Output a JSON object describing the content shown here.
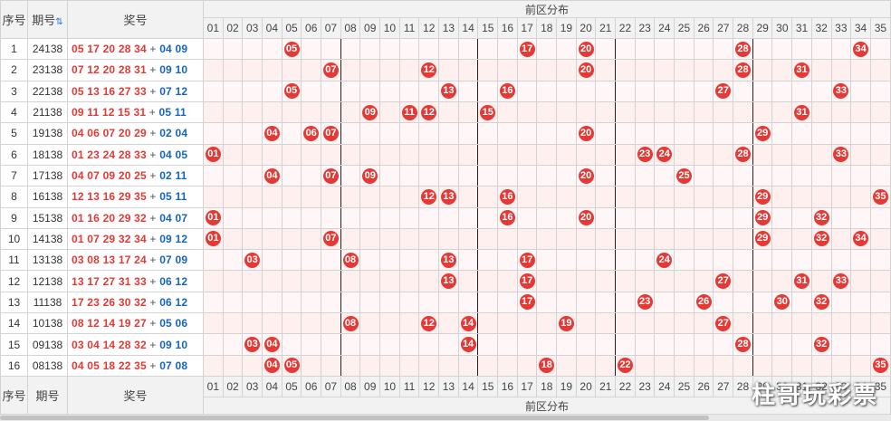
{
  "header": {
    "idx_label": "序号",
    "period_label": "期号",
    "period_sort_icon": "⇅",
    "award_label": "奖号",
    "region_label": "前区分布"
  },
  "footer": {
    "idx_label": "序号",
    "period_label": "期号",
    "award_label": "奖号",
    "region_label": "前区分布"
  },
  "numbers": [
    "01",
    "02",
    "03",
    "04",
    "05",
    "06",
    "07",
    "08",
    "09",
    "10",
    "11",
    "12",
    "13",
    "14",
    "15",
    "16",
    "17",
    "18",
    "19",
    "20",
    "21",
    "22",
    "23",
    "24",
    "25",
    "26",
    "27",
    "28",
    "29",
    "30",
    "31",
    "32",
    "33",
    "34",
    "35"
  ],
  "rows": [
    {
      "idx": "1",
      "period": "24138",
      "front": "05 17 20 28 34",
      "back": "04 09",
      "balls": [
        "05",
        "17",
        "20",
        "28",
        "34"
      ]
    },
    {
      "idx": "2",
      "period": "23138",
      "front": "07 12 20 28 31",
      "back": "09 10",
      "balls": [
        "07",
        "12",
        "20",
        "28",
        "31"
      ]
    },
    {
      "idx": "3",
      "period": "22138",
      "front": "05 13 16 27 33",
      "back": "07 12",
      "balls": [
        "05",
        "13",
        "16",
        "27",
        "33"
      ]
    },
    {
      "idx": "4",
      "period": "21138",
      "front": "09 11 12 15 31",
      "back": "05 11",
      "balls": [
        "09",
        "11",
        "12",
        "15",
        "31"
      ]
    },
    {
      "idx": "5",
      "period": "19138",
      "front": "04 06 07 20 29",
      "back": "02 04",
      "balls": [
        "04",
        "06",
        "07",
        "20",
        "29"
      ]
    },
    {
      "idx": "6",
      "period": "18138",
      "front": "01 23 24 28 33",
      "back": "04 05",
      "balls": [
        "01",
        "23",
        "24",
        "28",
        "33"
      ]
    },
    {
      "idx": "7",
      "period": "17138",
      "front": "04 07 09 20 25",
      "back": "02 11",
      "balls": [
        "04",
        "07",
        "09",
        "20",
        "25"
      ]
    },
    {
      "idx": "8",
      "period": "16138",
      "front": "12 13 16 29 35",
      "back": "05 11",
      "balls": [
        "12",
        "13",
        "16",
        "29",
        "35"
      ]
    },
    {
      "idx": "9",
      "period": "15138",
      "front": "01 16 20 29 32",
      "back": "04 07",
      "balls": [
        "01",
        "16",
        "20",
        "29",
        "32"
      ]
    },
    {
      "idx": "10",
      "period": "14138",
      "front": "01 07 29 32 34",
      "back": "09 12",
      "balls": [
        "01",
        "07",
        "29",
        "32",
        "34"
      ]
    },
    {
      "idx": "11",
      "period": "13138",
      "front": "03 08 13 17 24",
      "back": "07 09",
      "balls": [
        "03",
        "08",
        "13",
        "17",
        "24"
      ]
    },
    {
      "idx": "12",
      "period": "12138",
      "front": "13 17 27 31 33",
      "back": "06 12",
      "balls": [
        "13",
        "17",
        "27",
        "31",
        "33"
      ]
    },
    {
      "idx": "13",
      "period": "11138",
      "front": "17 23 26 30 32",
      "back": "06 12",
      "balls": [
        "17",
        "23",
        "26",
        "30",
        "32"
      ]
    },
    {
      "idx": "14",
      "period": "10138",
      "front": "08 12 14 19 27",
      "back": "05 06",
      "balls": [
        "08",
        "12",
        "14",
        "19",
        "27"
      ]
    },
    {
      "idx": "15",
      "period": "09138",
      "front": "03 04 14 28 32",
      "back": "09 10",
      "balls": [
        "03",
        "04",
        "14",
        "28",
        "32"
      ]
    },
    {
      "idx": "16",
      "period": "08138",
      "front": "04 05 18 22 35",
      "back": "07 08",
      "balls": [
        "04",
        "05",
        "18",
        "22",
        "35"
      ]
    }
  ],
  "plus_sign": "+",
  "watermark": "柱哥玩彩票",
  "colors": {
    "ball": "#e53935",
    "front_text": "#e53935",
    "back_text": "#1565c0"
  }
}
